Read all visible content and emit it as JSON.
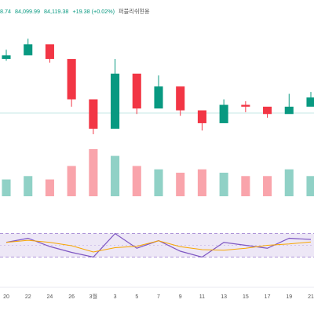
{
  "header": {
    "prefix": "8.74",
    "close": "84,099.99",
    "avg": "84,119.38",
    "change": "+19.38 (+0.02%)",
    "appended_text": "퍼블리쉬현용"
  },
  "chart_data": [
    {
      "type": "candlestick",
      "x": [
        "20",
        "22",
        "24",
        "26",
        "3월",
        "3",
        "5",
        "7",
        "9",
        "11",
        "13",
        "15",
        "17",
        "19",
        "21"
      ],
      "price_series_notes": "Relative-price estimates only; the chart prints no price axis.",
      "close": [
        100,
        106,
        98,
        76,
        60,
        90,
        71,
        83,
        70,
        63,
        73,
        72,
        68,
        72,
        77
      ],
      "high": [
        103,
        109,
        101,
        79,
        63,
        98,
        86,
        89,
        73,
        66,
        76,
        75,
        71,
        79,
        80
      ],
      "low": [
        97,
        103,
        96,
        72,
        57,
        85,
        68,
        79,
        67,
        59,
        70,
        69,
        66,
        69,
        74
      ],
      "volume": [
        5,
        6,
        5,
        9,
        14,
        12,
        9,
        8,
        7,
        8,
        7,
        6,
        6,
        8,
        6
      ],
      "colors": {
        "up": "#089981",
        "down": "#f23645",
        "rsi": "#7e57c2",
        "rsi_ma": "#f7a600",
        "band": "#ede7f6"
      }
    },
    {
      "type": "line",
      "series": [
        {
          "values": [
            55,
            62,
            48,
            38,
            30,
            70,
            45,
            58,
            40,
            30,
            55,
            50,
            45,
            62,
            60
          ]
        }
      ],
      "upper": 70,
      "lower": 30,
      "ylim": [
        0,
        100
      ]
    }
  ]
}
